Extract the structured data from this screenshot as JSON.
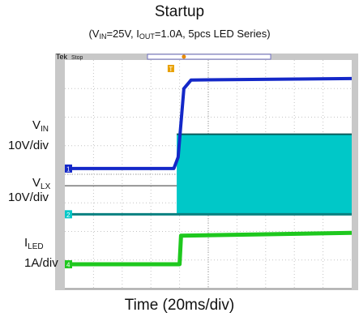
{
  "title": "Startup",
  "subtitle": {
    "open": "(V",
    "v_sub": "IN",
    "mid": "=25V, I",
    "i_sub": "OUT",
    "close": "=1.0A, 5pcs LED Series)"
  },
  "scope": {
    "brand": "Tek",
    "status": "Stop",
    "trigger_marker": "T",
    "ch_markers": [
      "1",
      "2",
      "4"
    ]
  },
  "channels": [
    {
      "id": "vin",
      "name_main": "V",
      "name_sub": "IN",
      "scale": "10V/div",
      "color": "#1428c8"
    },
    {
      "id": "vlx",
      "name_main": "V",
      "name_sub": "LX",
      "scale": "10V/div",
      "color": "#00c8c8"
    },
    {
      "id": "iled",
      "name_main": "I",
      "name_sub": "LED",
      "scale": "1A/div",
      "color": "#1ec81e"
    }
  ],
  "xlabel": "Time (20ms/div)",
  "chart_data": {
    "type": "line",
    "x_unit": "div",
    "x_range": [
      0,
      10
    ],
    "y_unit": "div",
    "y_range": [
      0,
      8
    ],
    "grid": true,
    "series": [
      {
        "name": "VIN",
        "points": [
          [
            0,
            4.2
          ],
          [
            3.8,
            4.2
          ],
          [
            3.95,
            4.6
          ],
          [
            4.15,
            7.0
          ],
          [
            4.4,
            7.3
          ],
          [
            10,
            7.35
          ]
        ]
      },
      {
        "name": "VLX",
        "baseline": 2.6,
        "switching_start": 3.9,
        "switching_top": 5.4,
        "points": [
          [
            0,
            2.6
          ],
          [
            3.9,
            2.6
          ],
          [
            10,
            2.6
          ]
        ]
      },
      {
        "name": "ILED",
        "points": [
          [
            0,
            0.85
          ],
          [
            4.0,
            0.85
          ],
          [
            4.05,
            1.85
          ],
          [
            10,
            1.95
          ]
        ]
      }
    ]
  }
}
